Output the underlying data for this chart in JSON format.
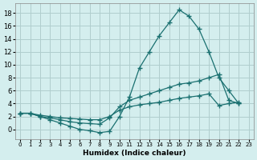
{
  "background_color": "#d4eeee",
  "grid_color": "#b0cece",
  "line_color": "#1a7070",
  "marker_color": "#1a7070",
  "xlabel": "Humidex (Indice chaleur)",
  "xlim": [
    -0.5,
    23.5
  ],
  "ylim": [
    -1.5,
    19.5
  ],
  "xticks": [
    0,
    1,
    2,
    3,
    4,
    5,
    6,
    7,
    8,
    9,
    10,
    11,
    12,
    13,
    14,
    15,
    16,
    17,
    18,
    19,
    20,
    21,
    22,
    23
  ],
  "yticks": [
    0,
    2,
    4,
    6,
    8,
    10,
    12,
    14,
    16,
    18
  ],
  "curve1_x": [
    0,
    1,
    2,
    3,
    4,
    5,
    6,
    7,
    8,
    9,
    10,
    11,
    12,
    13,
    14,
    15,
    16,
    17,
    18,
    19,
    20,
    21,
    22
  ],
  "curve1_y": [
    2.5,
    2.5,
    2.0,
    1.5,
    1.0,
    0.5,
    0.0,
    -0.2,
    -0.5,
    -0.3,
    2.0,
    5.0,
    9.5,
    12.0,
    14.5,
    16.5,
    18.5,
    17.5,
    15.5,
    12.0,
    8.0,
    6.0,
    4.0
  ],
  "curve2_x": [
    0,
    1,
    2,
    3,
    4,
    5,
    6,
    7,
    8,
    9,
    10,
    11,
    12,
    13,
    14,
    15,
    16,
    17,
    18,
    19,
    20,
    21,
    22
  ],
  "curve2_y": [
    2.5,
    2.5,
    2.0,
    1.8,
    1.5,
    1.2,
    1.0,
    0.9,
    0.8,
    1.8,
    3.5,
    4.5,
    5.0,
    5.5,
    6.0,
    6.5,
    7.0,
    7.2,
    7.5,
    8.0,
    8.5,
    4.5,
    4.0
  ],
  "curve3_x": [
    0,
    1,
    2,
    3,
    4,
    5,
    6,
    7,
    8,
    9,
    10,
    11,
    12,
    13,
    14,
    15,
    16,
    17,
    18,
    19,
    20,
    21,
    22
  ],
  "curve3_y": [
    2.5,
    2.5,
    2.2,
    2.0,
    1.8,
    1.7,
    1.6,
    1.5,
    1.5,
    2.0,
    3.0,
    3.5,
    3.8,
    4.0,
    4.2,
    4.5,
    4.8,
    5.0,
    5.2,
    5.5,
    3.7,
    4.0,
    4.2
  ]
}
